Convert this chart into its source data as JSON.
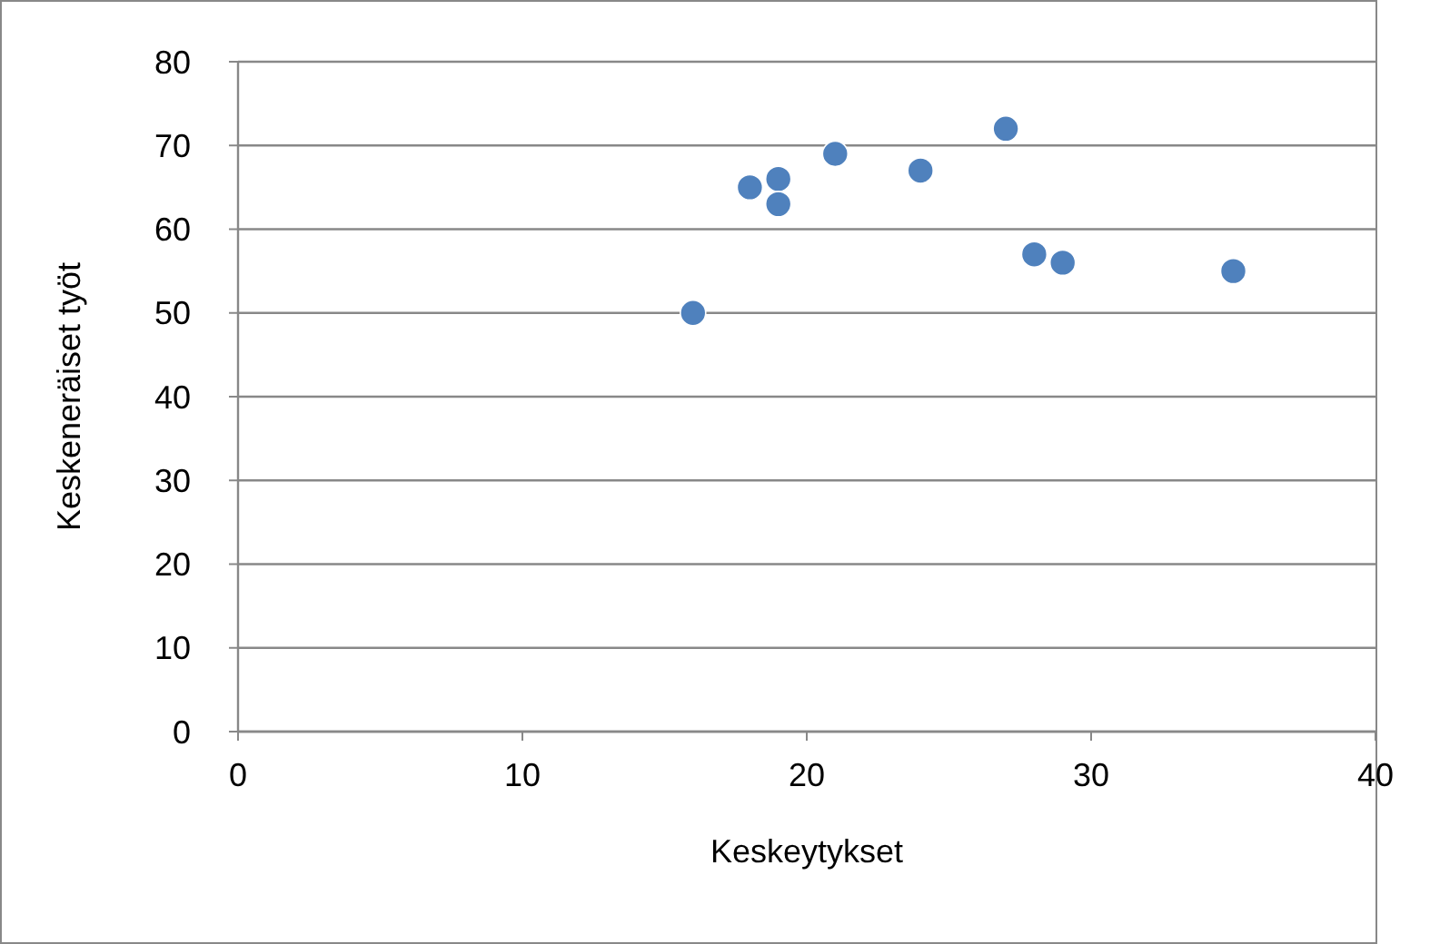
{
  "chart_data": {
    "type": "scatter",
    "xlabel": "Keskeytykset",
    "ylabel": "Keskeneräiset työt",
    "x": [
      16,
      18,
      19,
      19,
      21,
      24,
      27,
      28,
      29,
      35
    ],
    "series": [
      {
        "color": "#4f81bd",
        "values": [
          50,
          65,
          66,
          63,
          69,
          67,
          72,
          57,
          56,
          55
        ]
      }
    ],
    "xlim": [
      0,
      40
    ],
    "xticks": [
      0,
      10,
      20,
      30,
      40
    ],
    "ylim": [
      0,
      80
    ],
    "yticks": [
      0,
      10,
      20,
      30,
      40,
      50,
      60,
      70,
      80
    ],
    "grid": "y",
    "marker": "circle"
  }
}
